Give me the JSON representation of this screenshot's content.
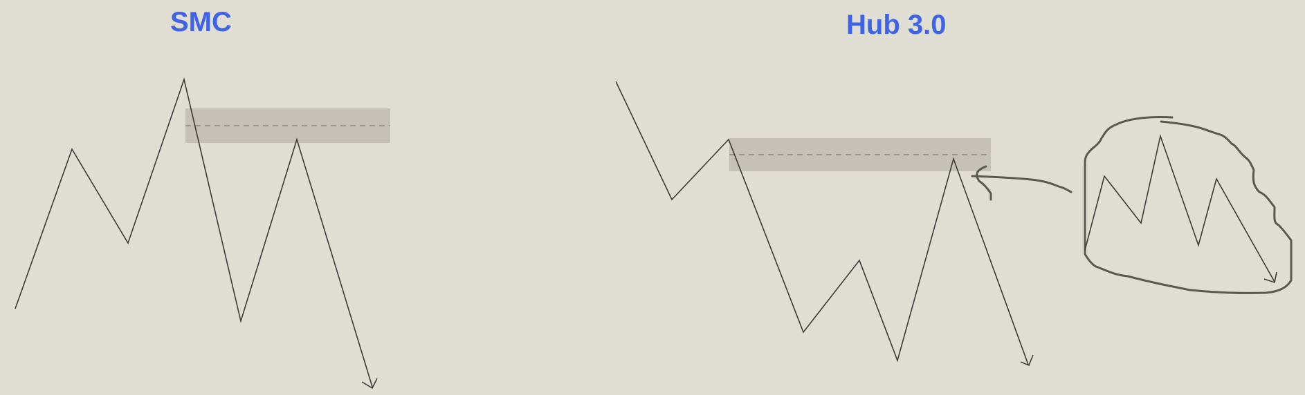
{
  "titles": {
    "left": "SMC",
    "right": "Hub 3.0"
  },
  "colors": {
    "background": "#e0ddd2",
    "title": "#3f63e6",
    "line": "#3a3a3a",
    "zone_fill": "#c5c1b6",
    "dashed_midline": "#8c897f",
    "hand_drawn": "#5a5750"
  },
  "icons": [
    "arrowhead-icon",
    "arrowhead-icon",
    "arrowhead-icon"
  ]
}
